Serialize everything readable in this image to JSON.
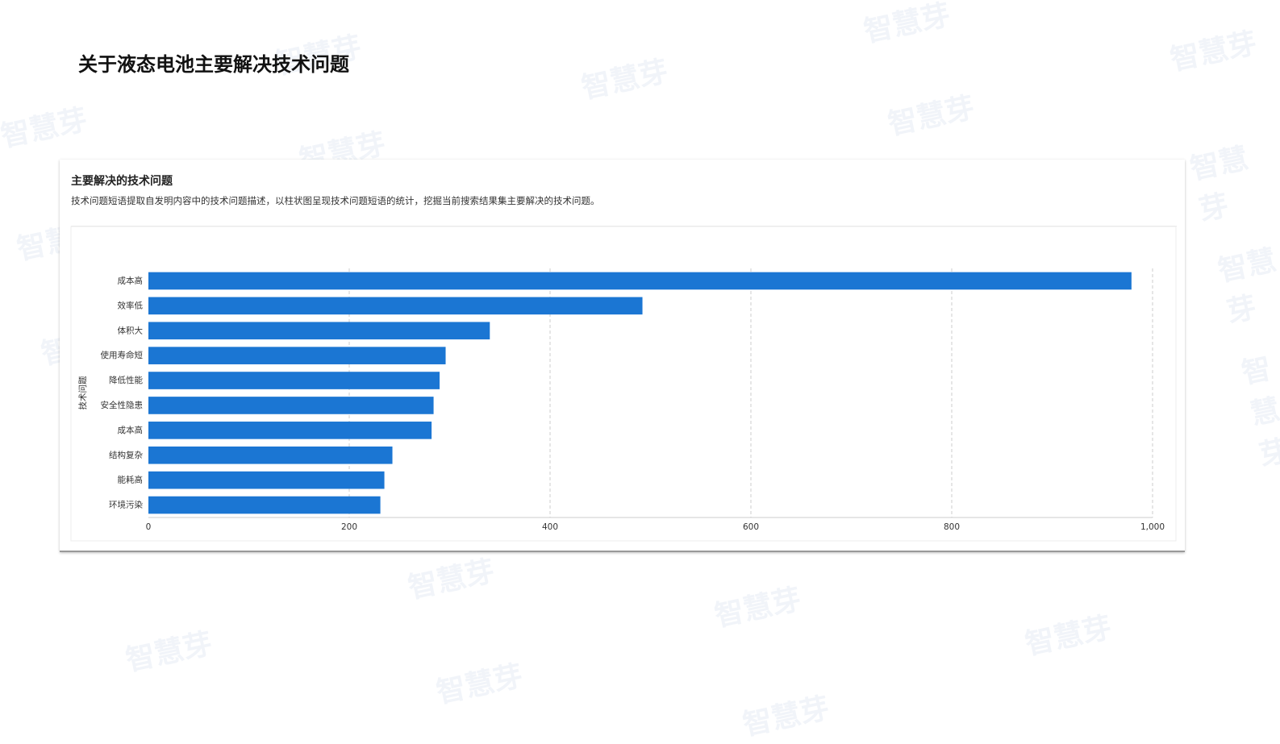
{
  "header": {
    "title": "关于液态电池主要解决技术问题"
  },
  "watermark": "智慧芽",
  "card": {
    "title": "主要解决的技术问题",
    "description": "技术问题短语提取自发明内容中的技术问题描述，以柱状图呈现技术问题短语的统计，挖掘当前搜索结果集主要解决的技术问题。"
  },
  "chart_data": {
    "type": "barh",
    "ylabel": "技术问题",
    "categories": [
      "成本高",
      "效率低",
      "体积大",
      "使用寿命短",
      "降低性能",
      "安全性隐患",
      "成本高",
      "结构复杂",
      "能耗高",
      "环境污染"
    ],
    "values": [
      979,
      492,
      340,
      296,
      290,
      284,
      282,
      243,
      235,
      231
    ],
    "color": "#1b76d3",
    "xlim": [
      0,
      1000
    ],
    "xticks": [
      0,
      200,
      400,
      600,
      800,
      {
        "value": 1000,
        "label": "1,000"
      }
    ],
    "grid": true
  }
}
